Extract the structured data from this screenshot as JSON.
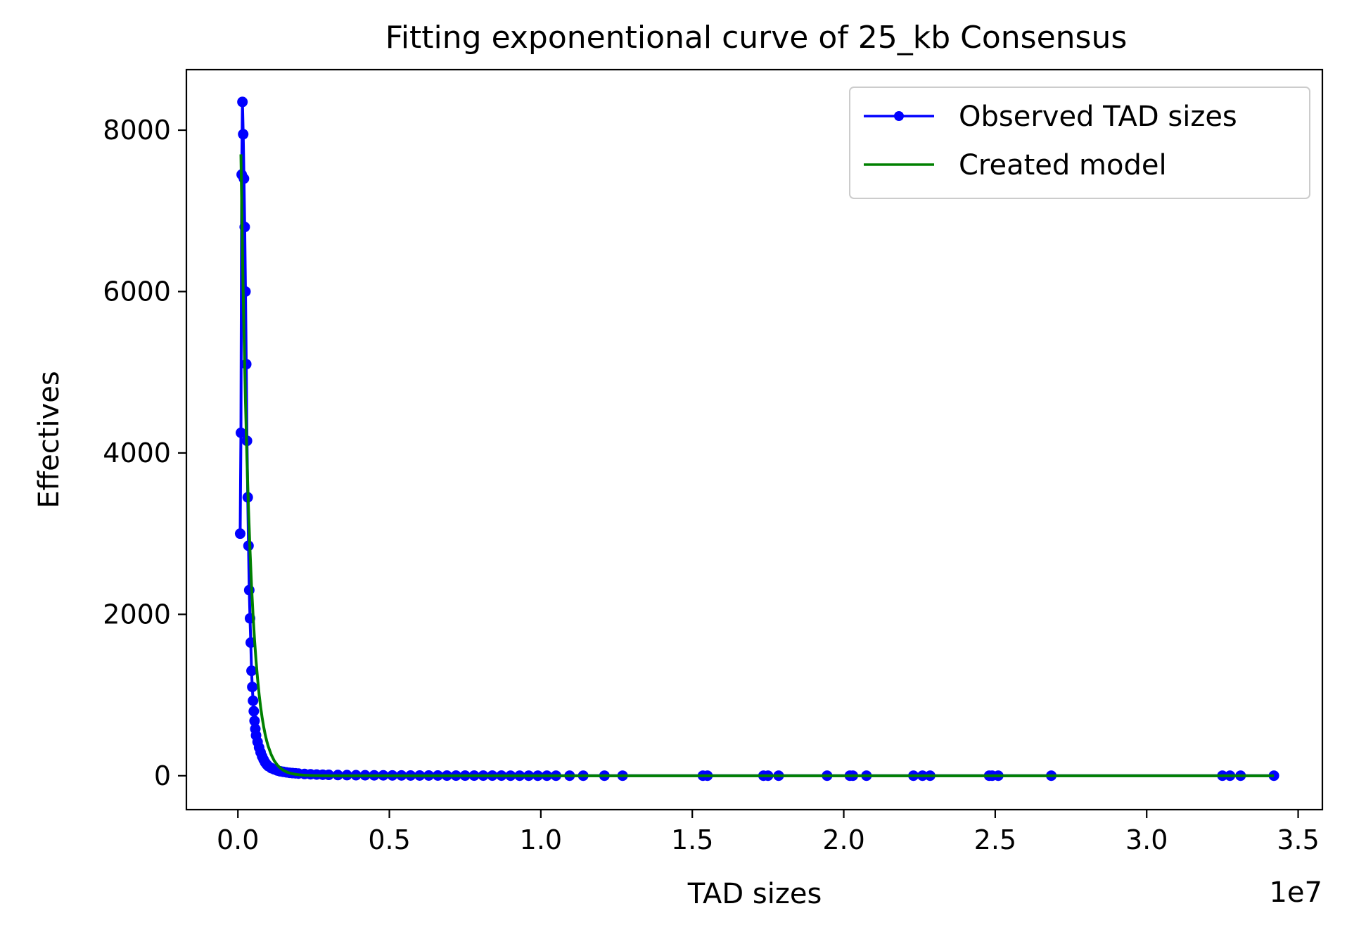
{
  "chart_data": {
    "type": "line",
    "title": "Fitting exponentional curve of 25_kb Consensus",
    "xlabel": "TAD sizes",
    "ylabel": "Effectives",
    "x_offset_label": "1e7",
    "x_scale_factor": 10000000,
    "xlim": [
      -1700000,
      35800000
    ],
    "ylim": [
      -420,
      8750
    ],
    "x_ticks": [
      0,
      5000000,
      10000000,
      15000000,
      20000000,
      25000000,
      30000000,
      35000000
    ],
    "x_tick_labels": [
      "0.0",
      "0.5",
      "1.0",
      "1.5",
      "2.0",
      "2.5",
      "3.0",
      "3.5"
    ],
    "y_ticks": [
      0,
      2000,
      4000,
      6000,
      8000
    ],
    "y_tick_labels": [
      "0",
      "2000",
      "4000",
      "6000",
      "8000"
    ],
    "grid": false,
    "legend": {
      "position": "top-right",
      "entries": [
        "Observed TAD sizes",
        "Created model"
      ]
    },
    "series": [
      {
        "name": "Observed TAD sizes",
        "color": "#0000ff",
        "style": "line-with-markers",
        "x": [
          75000,
          100000,
          125000,
          150000,
          175000,
          200000,
          225000,
          250000,
          275000,
          300000,
          325000,
          350000,
          375000,
          400000,
          425000,
          450000,
          475000,
          500000,
          525000,
          550000,
          575000,
          600000,
          650000,
          700000,
          750000,
          800000,
          850000,
          900000,
          950000,
          1000000,
          1100000,
          1200000,
          1300000,
          1400000,
          1500000,
          1600000,
          1700000,
          1800000,
          1900000,
          2000000,
          2200000,
          2400000,
          2600000,
          2800000,
          3000000,
          3300000,
          3600000,
          3900000,
          4200000,
          4500000,
          4800000,
          5100000,
          5400000,
          5700000,
          6000000,
          6300000,
          6600000,
          6900000,
          7200000,
          7500000,
          7800000,
          8100000,
          8400000,
          8700000,
          9000000,
          9300000,
          9600000,
          9900000,
          10200000,
          10500000,
          10950000,
          11400000,
          12100000,
          12700000,
          15350000,
          15500000,
          17350000,
          17500000,
          17850000,
          19450000,
          20200000,
          20300000,
          20750000,
          22300000,
          22600000,
          22850000,
          24800000,
          24900000,
          25100000,
          26850000,
          32500000,
          32750000,
          33100000,
          34200000
        ],
        "y": [
          3000,
          4250,
          7450,
          8350,
          7950,
          7400,
          6800,
          6000,
          5100,
          4150,
          3450,
          2850,
          2300,
          1950,
          1650,
          1300,
          1100,
          930,
          800,
          680,
          580,
          500,
          420,
          350,
          290,
          240,
          200,
          165,
          140,
          120,
          95,
          80,
          65,
          55,
          48,
          42,
          37,
          33,
          30,
          27,
          22,
          18,
          15,
          13,
          11,
          9,
          8,
          7,
          6,
          5,
          5,
          4,
          4,
          3,
          3,
          3,
          3,
          2,
          2,
          2,
          2,
          2,
          2,
          2,
          1,
          1,
          1,
          1,
          1,
          1,
          1,
          1,
          1,
          1,
          1,
          1,
          1,
          1,
          1,
          1,
          1,
          1,
          1,
          1,
          1,
          1,
          1,
          1,
          1,
          1,
          1,
          1,
          1,
          1
        ]
      },
      {
        "name": "Created model",
        "color": "#008000",
        "style": "line",
        "x": [
          100000,
          150000,
          200000,
          250000,
          300000,
          350000,
          400000,
          450000,
          500000,
          550000,
          600000,
          650000,
          700000,
          750000,
          800000,
          850000,
          900000,
          950000,
          1000000,
          1100000,
          1200000,
          1300000,
          1400000,
          1500000,
          1600000,
          1700000,
          1800000,
          1900000,
          2000000,
          2200000,
          2500000,
          3000000,
          4000000,
          6000000,
          10000000,
          15000000,
          20000000,
          25000000,
          30000000,
          34200000
        ],
        "y": [
          7700,
          6500,
          5490,
          4640,
          3910,
          3300,
          2790,
          2350,
          1990,
          1680,
          1420,
          1200,
          1010,
          852,
          720,
          608,
          513,
          433,
          366,
          261,
          186,
          133,
          95,
          68,
          48,
          34,
          25,
          18,
          13,
          6,
          2,
          0,
          0,
          0,
          0,
          0,
          0,
          0,
          0,
          0
        ]
      }
    ]
  }
}
